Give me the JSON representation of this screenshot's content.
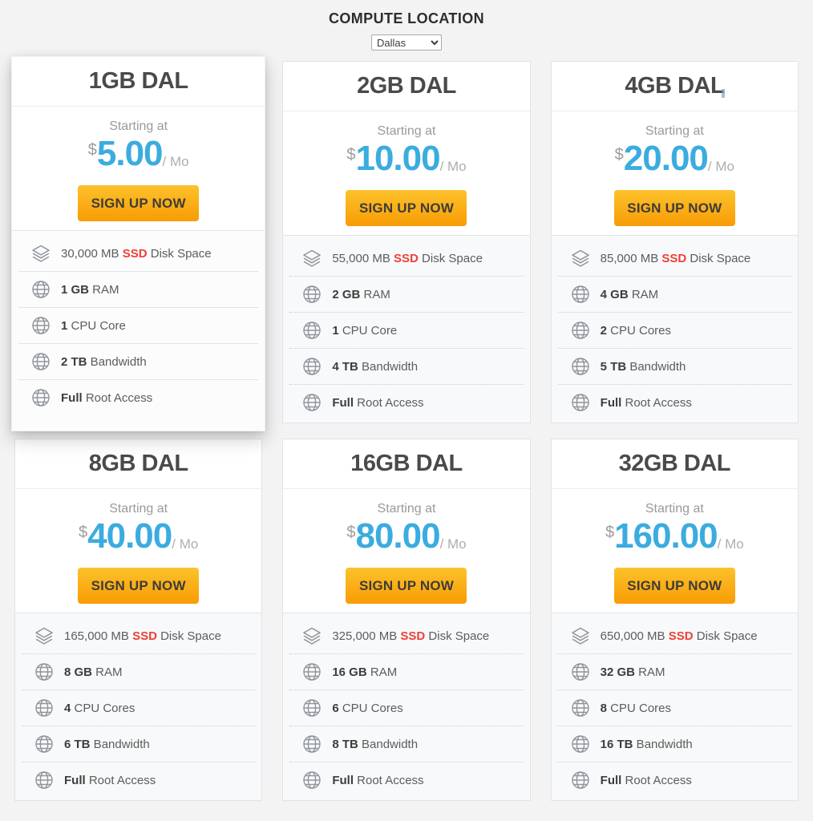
{
  "header": {
    "title": "COMPUTE LOCATION",
    "location_label": "Dallas",
    "location_options": [
      "Dallas"
    ]
  },
  "colors": {
    "page_background": "#f3f3f4",
    "price_blue": "#3bacdf",
    "ssd_red": "#ee4036",
    "button_gradient_top": "#fcc22c",
    "button_gradient_bottom": "#f89c05",
    "card_border": "#dee4e9"
  },
  "plans": [
    {
      "name": "1GB DAL",
      "featured": true,
      "starting_at": "Starting at",
      "currency": "$",
      "amount": "5.00",
      "period": "/ Mo",
      "button_label": "SIGN UP NOW",
      "features": [
        {
          "icon": "layers-icon",
          "segments": [
            {
              "text": "30,000 MB ",
              "style": "n"
            },
            {
              "text": "SSD",
              "style": "r"
            },
            {
              "text": " Disk Space",
              "style": "n"
            }
          ]
        },
        {
          "icon": "globe-icon",
          "segments": [
            {
              "text": "1 GB",
              "style": "b"
            },
            {
              "text": " RAM",
              "style": "n"
            }
          ]
        },
        {
          "icon": "globe-icon",
          "segments": [
            {
              "text": "1",
              "style": "b"
            },
            {
              "text": " CPU Core",
              "style": "n"
            }
          ]
        },
        {
          "icon": "globe-icon",
          "segments": [
            {
              "text": "2 TB",
              "style": "b"
            },
            {
              "text": " Bandwidth",
              "style": "n"
            }
          ]
        },
        {
          "icon": "globe-icon",
          "segments": [
            {
              "text": "Full",
              "style": "b"
            },
            {
              "text": " Root Access",
              "style": "n"
            }
          ]
        }
      ]
    },
    {
      "name": "2GB DAL",
      "featured": false,
      "starting_at": "Starting at",
      "currency": "$",
      "amount": "10.00",
      "period": "/ Mo",
      "button_label": "SIGN UP NOW",
      "features": [
        {
          "icon": "layers-icon",
          "segments": [
            {
              "text": "55,000 MB ",
              "style": "n"
            },
            {
              "text": "SSD",
              "style": "r"
            },
            {
              "text": " Disk Space",
              "style": "n"
            }
          ]
        },
        {
          "icon": "globe-icon",
          "segments": [
            {
              "text": "2 GB",
              "style": "b"
            },
            {
              "text": " RAM",
              "style": "n"
            }
          ]
        },
        {
          "icon": "globe-icon",
          "segments": [
            {
              "text": "1",
              "style": "b"
            },
            {
              "text": " CPU Core",
              "style": "n"
            }
          ]
        },
        {
          "icon": "globe-icon",
          "segments": [
            {
              "text": "4 TB",
              "style": "b"
            },
            {
              "text": " Bandwidth",
              "style": "n"
            }
          ]
        },
        {
          "icon": "globe-icon",
          "segments": [
            {
              "text": "Full",
              "style": "b"
            },
            {
              "text": " Root Access",
              "style": "n"
            }
          ]
        }
      ]
    },
    {
      "name": "4GB DAL",
      "featured": false,
      "cursor_artifact": true,
      "starting_at": "Starting at",
      "currency": "$",
      "amount": "20.00",
      "period": "/ Mo",
      "button_label": "SIGN UP NOW",
      "features": [
        {
          "icon": "layers-icon",
          "segments": [
            {
              "text": "85,000 MB ",
              "style": "n"
            },
            {
              "text": "SSD",
              "style": "r"
            },
            {
              "text": " Disk Space",
              "style": "n"
            }
          ]
        },
        {
          "icon": "globe-icon",
          "segments": [
            {
              "text": "4 GB",
              "style": "b"
            },
            {
              "text": " RAM",
              "style": "n"
            }
          ]
        },
        {
          "icon": "globe-icon",
          "segments": [
            {
              "text": "2",
              "style": "b"
            },
            {
              "text": " CPU Cores",
              "style": "n"
            }
          ]
        },
        {
          "icon": "globe-icon",
          "segments": [
            {
              "text": "5 TB",
              "style": "b"
            },
            {
              "text": " Bandwidth",
              "style": "n"
            }
          ]
        },
        {
          "icon": "globe-icon",
          "segments": [
            {
              "text": "Full",
              "style": "b"
            },
            {
              "text": " Root Access",
              "style": "n"
            }
          ]
        }
      ]
    },
    {
      "name": "8GB DAL",
      "featured": false,
      "starting_at": "Starting at",
      "currency": "$",
      "amount": "40.00",
      "period": "/ Mo",
      "button_label": "SIGN UP NOW",
      "features": [
        {
          "icon": "layers-icon",
          "segments": [
            {
              "text": "165,000 MB ",
              "style": "n"
            },
            {
              "text": "SSD",
              "style": "r"
            },
            {
              "text": " Disk Space",
              "style": "n"
            }
          ]
        },
        {
          "icon": "globe-icon",
          "segments": [
            {
              "text": "8 GB",
              "style": "b"
            },
            {
              "text": " RAM",
              "style": "n"
            }
          ]
        },
        {
          "icon": "globe-icon",
          "segments": [
            {
              "text": "4",
              "style": "b"
            },
            {
              "text": " CPU Cores",
              "style": "n"
            }
          ]
        },
        {
          "icon": "globe-icon",
          "segments": [
            {
              "text": "6 TB",
              "style": "b"
            },
            {
              "text": " Bandwidth",
              "style": "n"
            }
          ]
        },
        {
          "icon": "globe-icon",
          "segments": [
            {
              "text": "Full",
              "style": "b"
            },
            {
              "text": " Root Access",
              "style": "n"
            }
          ]
        }
      ]
    },
    {
      "name": "16GB DAL",
      "featured": false,
      "starting_at": "Starting at",
      "currency": "$",
      "amount": "80.00",
      "period": "/ Mo",
      "button_label": "SIGN UP NOW",
      "features": [
        {
          "icon": "layers-icon",
          "segments": [
            {
              "text": "325,000 MB ",
              "style": "n"
            },
            {
              "text": "SSD",
              "style": "r"
            },
            {
              "text": " Disk Space",
              "style": "n"
            }
          ]
        },
        {
          "icon": "globe-icon",
          "segments": [
            {
              "text": "16 GB",
              "style": "b"
            },
            {
              "text": " RAM",
              "style": "n"
            }
          ]
        },
        {
          "icon": "globe-icon",
          "segments": [
            {
              "text": "6",
              "style": "b"
            },
            {
              "text": " CPU Cores",
              "style": "n"
            }
          ]
        },
        {
          "icon": "globe-icon",
          "segments": [
            {
              "text": "8 TB",
              "style": "b"
            },
            {
              "text": " Bandwidth",
              "style": "n"
            }
          ]
        },
        {
          "icon": "globe-icon",
          "segments": [
            {
              "text": "Full",
              "style": "b"
            },
            {
              "text": " Root Access",
              "style": "n"
            }
          ]
        }
      ]
    },
    {
      "name": "32GB DAL",
      "featured": false,
      "starting_at": "Starting at",
      "currency": "$",
      "amount": "160.00",
      "period": "/ Mo",
      "button_label": "SIGN UP NOW",
      "features": [
        {
          "icon": "layers-icon",
          "segments": [
            {
              "text": "650,000 MB ",
              "style": "n"
            },
            {
              "text": "SSD",
              "style": "r"
            },
            {
              "text": " Disk Space",
              "style": "n"
            }
          ]
        },
        {
          "icon": "globe-icon",
          "segments": [
            {
              "text": "32 GB",
              "style": "b"
            },
            {
              "text": " RAM",
              "style": "n"
            }
          ]
        },
        {
          "icon": "globe-icon",
          "segments": [
            {
              "text": "8",
              "style": "b"
            },
            {
              "text": " CPU Cores",
              "style": "n"
            }
          ]
        },
        {
          "icon": "globe-icon",
          "segments": [
            {
              "text": "16 TB",
              "style": "b"
            },
            {
              "text": " Bandwidth",
              "style": "n"
            }
          ]
        },
        {
          "icon": "globe-icon",
          "segments": [
            {
              "text": "Full",
              "style": "b"
            },
            {
              "text": " Root Access",
              "style": "n"
            }
          ]
        }
      ]
    }
  ]
}
